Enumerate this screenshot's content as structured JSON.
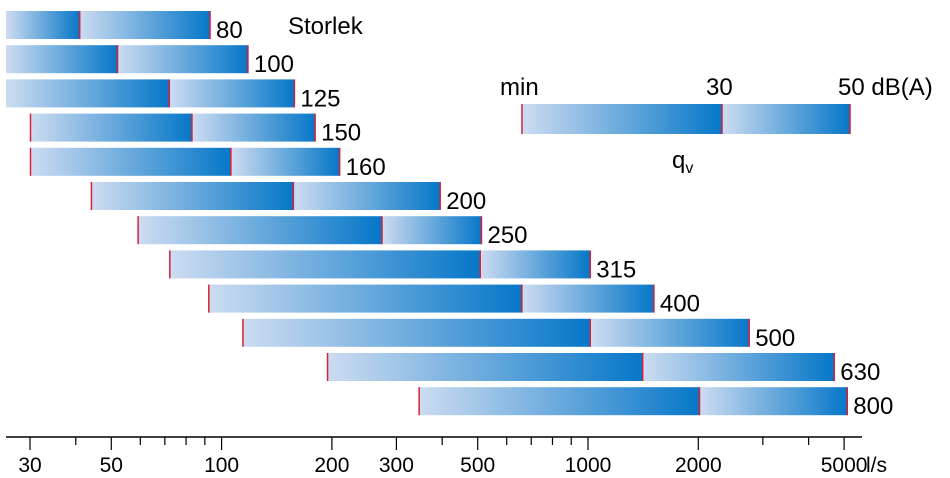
{
  "chart_data": {
    "type": "bar",
    "subtype": "floating-range",
    "scale": "log",
    "size_header": "Storlek",
    "x_unit": "l/s",
    "x_tick_labels": [
      30,
      50,
      100,
      200,
      300,
      500,
      1000,
      2000,
      5000
    ],
    "xlim": [
      28,
      6000
    ],
    "bars": [
      {
        "size": "80",
        "min": 25,
        "mid": 41,
        "max": 93
      },
      {
        "size": "100",
        "min": 25,
        "mid": 52,
        "max": 118
      },
      {
        "size": "125",
        "min": 25,
        "mid": 72,
        "max": 158
      },
      {
        "size": "150",
        "min": 30,
        "mid": 83,
        "max": 180
      },
      {
        "size": "160",
        "min": 30,
        "mid": 106,
        "max": 210
      },
      {
        "size": "200",
        "min": 44,
        "mid": 157,
        "max": 395
      },
      {
        "size": "250",
        "min": 59,
        "mid": 274,
        "max": 512
      },
      {
        "size": "315",
        "min": 72,
        "mid": 508,
        "max": 1014
      },
      {
        "size": "400",
        "min": 92,
        "mid": 660,
        "max": 1513
      },
      {
        "size": "500",
        "min": 114,
        "mid": 1014,
        "max": 2754
      },
      {
        "size": "630",
        "min": 194,
        "mid": 1410,
        "max": 4700
      },
      {
        "size": "800",
        "min": 345,
        "mid": 2015,
        "max": 5100
      }
    ],
    "legend": {
      "min_label": "min",
      "mid_label": "30",
      "max_label": "50 dB(A)",
      "caption_main": "q",
      "caption_sub": "v"
    },
    "colors": {
      "bar_light": "#cddcf1",
      "bar_dark": "#0677c8",
      "marker": "#d8203a",
      "axis": "#000000"
    }
  }
}
